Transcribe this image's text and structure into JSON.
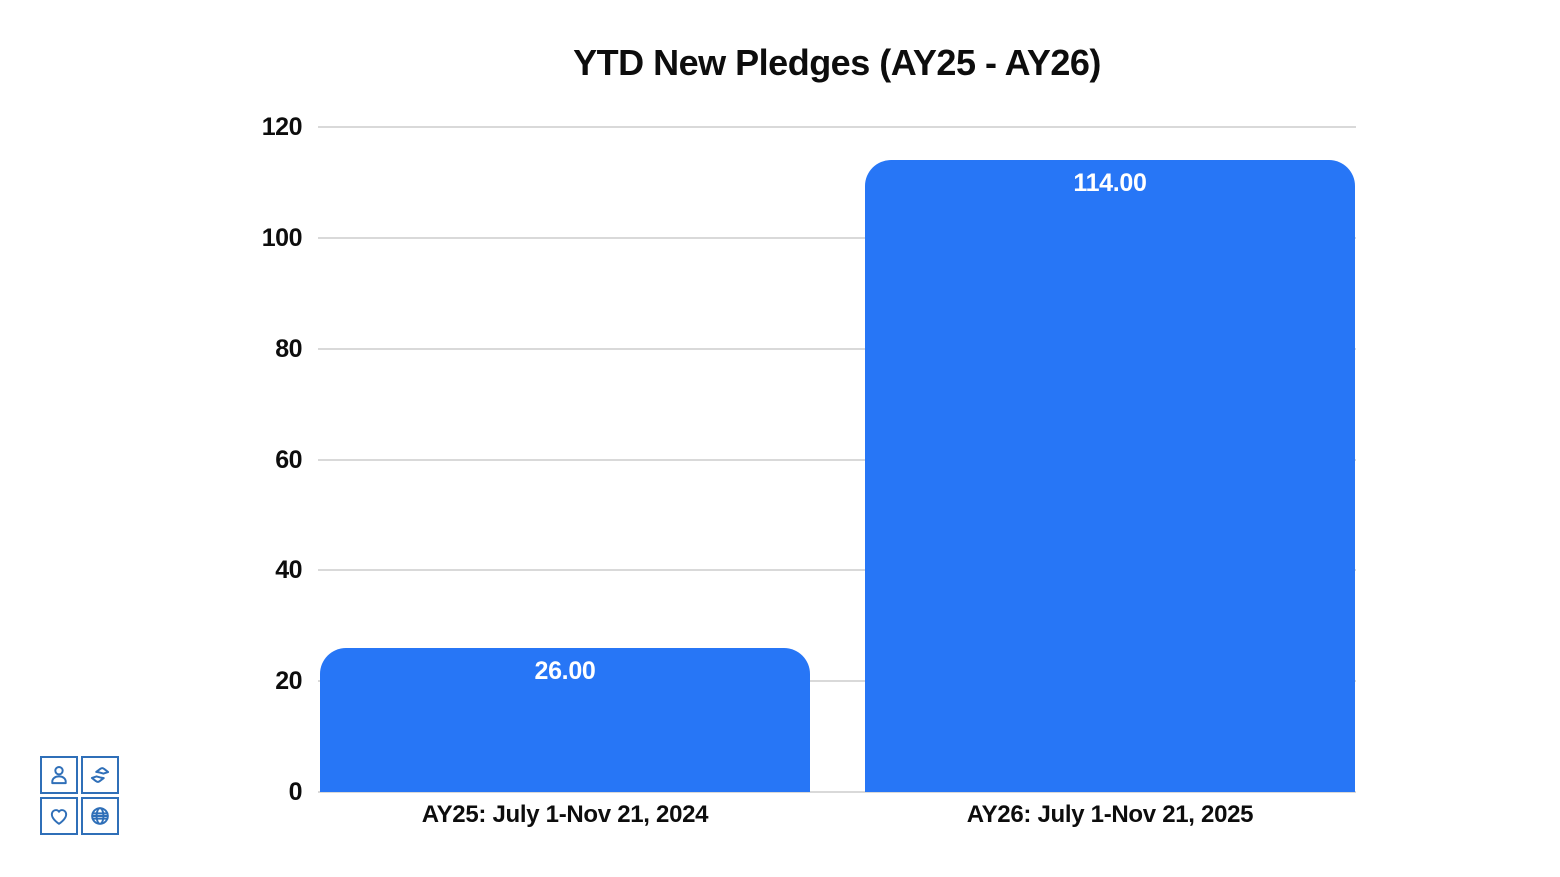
{
  "chart_data": {
    "type": "bar",
    "title": "YTD New Pledges (AY25 - AY26)",
    "categories": [
      "AY25: July 1-Nov 21, 2024",
      "AY26: July 1-Nov 21, 2025"
    ],
    "values": [
      26,
      114
    ],
    "value_labels": [
      "26.00",
      "114.00"
    ],
    "ylim": [
      0,
      120
    ],
    "yticks": [
      0,
      20,
      40,
      60,
      80,
      100,
      120
    ],
    "grid": true,
    "legend": false,
    "xlabel": "",
    "ylabel": "",
    "bar_color": "#2776f6",
    "value_label_color": "#ffffff",
    "gridline_color": "#d9d9d9",
    "text_color": "#0d0d0d"
  },
  "logo": {
    "color": "#2f6fb8",
    "icons": [
      "person-icon",
      "giving-hands-icon",
      "heart-icon",
      "globe-icon"
    ]
  }
}
